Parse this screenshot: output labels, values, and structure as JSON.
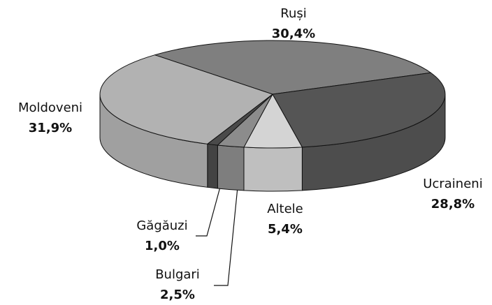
{
  "chart_data": {
    "type": "pie3d",
    "categories": [
      "Ruși",
      "Ucraineni",
      "Altele",
      "Bulgari",
      "Găgăuzi",
      "Moldoveni"
    ],
    "values": [
      30.4,
      28.8,
      5.4,
      2.5,
      1.0,
      31.9
    ],
    "value_labels": [
      "30,4%",
      "28,8%",
      "5,4%",
      "2,5%",
      "1,0%",
      "31,9%"
    ],
    "colors": [
      "#7f7f7f",
      "#555555",
      "#d4d4d4",
      "#8c8c8c",
      "#4a4a4a",
      "#b2b2b2"
    ]
  }
}
